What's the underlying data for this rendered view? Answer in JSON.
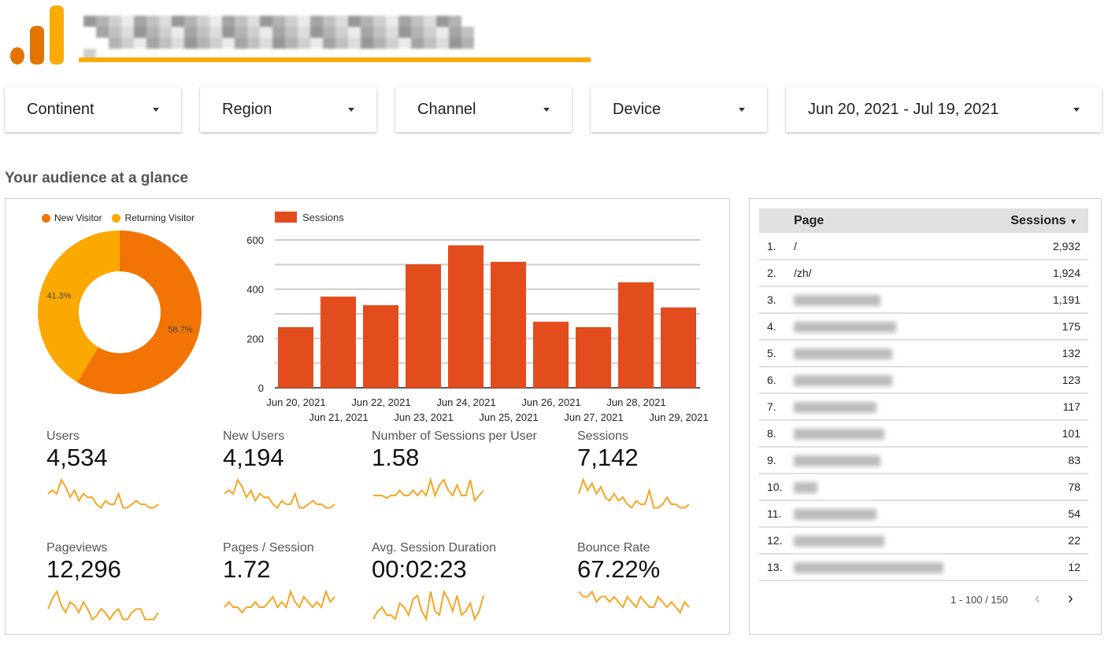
{
  "filters": [
    {
      "label": "Continent"
    },
    {
      "label": "Region"
    },
    {
      "label": "Channel"
    },
    {
      "label": "Device"
    },
    {
      "label": "Jun 20, 2021 - Jul 19, 2021"
    }
  ],
  "section_title": "Your audience at a glance",
  "colors": {
    "new": "#f27405",
    "returning": "#fba800",
    "bar": "#e34c1c",
    "spark": "#f5a623"
  },
  "chart_data": [
    {
      "type": "pie",
      "title": "",
      "legend": [
        "New Visitor",
        "Returning Visitor"
      ],
      "values": [
        58.7,
        41.3
      ],
      "labels": [
        "58.7%",
        "41.3%"
      ],
      "legend_position": "top"
    },
    {
      "type": "bar",
      "legend": "Sessions",
      "categories": [
        "Jun 20, 2021",
        "Jun 21, 2021",
        "Jun 22, 2021",
        "Jun 23, 2021",
        "Jun 24, 2021",
        "Jun 25, 2021",
        "Jun 26, 2021",
        "Jun 27, 2021",
        "Jun 28, 2021",
        "Jun 29, 2021"
      ],
      "values": [
        246,
        370,
        335,
        501,
        578,
        511,
        268,
        246,
        428,
        326
      ],
      "yticks": [
        "0",
        "200",
        "400",
        "600"
      ],
      "ylim": [
        0,
        600
      ],
      "grid": true
    }
  ],
  "metrics": [
    {
      "label": "Users",
      "value": "4,534",
      "spark": [
        5,
        6,
        5,
        9,
        7,
        4,
        6,
        3,
        5,
        4,
        4,
        2,
        1,
        3,
        2,
        2,
        5,
        1,
        1,
        2,
        3,
        2,
        2,
        1,
        1,
        2
      ]
    },
    {
      "label": "New Users",
      "value": "4,194",
      "spark": [
        5,
        6,
        5,
        9,
        7,
        4,
        6,
        3,
        5,
        4,
        4,
        2,
        1,
        3,
        2,
        2,
        5,
        1,
        1,
        2,
        3,
        2,
        2,
        1,
        1,
        2
      ]
    },
    {
      "label": "Number of Sessions per User",
      "value": "1.58",
      "spark": [
        3,
        3,
        3,
        2.5,
        3,
        3,
        4,
        3,
        3,
        4,
        3,
        4,
        3,
        6,
        3,
        5,
        6,
        4,
        3,
        5,
        3,
        3,
        6,
        2,
        3,
        4
      ]
    },
    {
      "label": "Sessions",
      "value": "7,142",
      "spark": [
        5,
        9,
        6,
        8,
        5,
        7,
        4,
        3,
        5,
        3,
        4,
        2,
        1,
        3,
        2,
        2,
        6,
        1,
        1,
        2,
        4,
        2,
        2,
        1,
        1,
        2
      ]
    },
    {
      "label": "Pageviews",
      "value": "12,296",
      "spark": [
        4,
        7,
        9,
        5,
        3,
        6,
        5,
        3,
        6,
        4,
        1,
        2,
        4,
        3,
        1,
        3,
        4,
        1,
        1,
        3,
        4,
        4,
        1,
        1,
        1,
        3
      ]
    },
    {
      "label": "Pages / Session",
      "value": "1.72",
      "spark": [
        3,
        4,
        3,
        3,
        2,
        3,
        3,
        4,
        3,
        3,
        4,
        5,
        3,
        4,
        3,
        6,
        4,
        3,
        5,
        4,
        3,
        4,
        3,
        6,
        4,
        5
      ]
    },
    {
      "label": "Avg. Session Duration",
      "value": "00:02:23",
      "spark": [
        1,
        3,
        4,
        2,
        2,
        1,
        5,
        4,
        2,
        6,
        7,
        3,
        1,
        8,
        3,
        2,
        8,
        6,
        3,
        7,
        2,
        3,
        5,
        1,
        3,
        7
      ]
    },
    {
      "label": "Bounce Rate",
      "value": "67.22%",
      "spark": [
        6,
        5,
        5,
        6,
        4,
        5,
        5,
        4,
        5,
        4,
        3,
        5,
        4,
        3,
        5,
        4,
        3,
        3,
        5,
        4,
        3,
        4,
        3,
        2,
        4,
        3
      ]
    }
  ],
  "table": {
    "headers": {
      "page": "Page",
      "sessions": "Sessions"
    },
    "rows": [
      {
        "rank": "1.",
        "page": "/",
        "sessions": "2,932"
      },
      {
        "rank": "2.",
        "page": "/zh/",
        "sessions": "1,924"
      },
      {
        "rank": "3.",
        "page": "",
        "sessions": "1,191"
      },
      {
        "rank": "4.",
        "page": "",
        "sessions": "175"
      },
      {
        "rank": "5.",
        "page": "",
        "sessions": "132"
      },
      {
        "rank": "6.",
        "page": "",
        "sessions": "123"
      },
      {
        "rank": "7.",
        "page": "",
        "sessions": "117"
      },
      {
        "rank": "8.",
        "page": "",
        "sessions": "101"
      },
      {
        "rank": "9.",
        "page": "",
        "sessions": "83"
      },
      {
        "rank": "10.",
        "page": "",
        "sessions": "78"
      },
      {
        "rank": "11.",
        "page": "",
        "sessions": "54"
      },
      {
        "rank": "12.",
        "page": "",
        "sessions": "22"
      },
      {
        "rank": "13.",
        "page": "",
        "sessions": "12"
      }
    ],
    "pagination": "1 - 100 / 150"
  }
}
